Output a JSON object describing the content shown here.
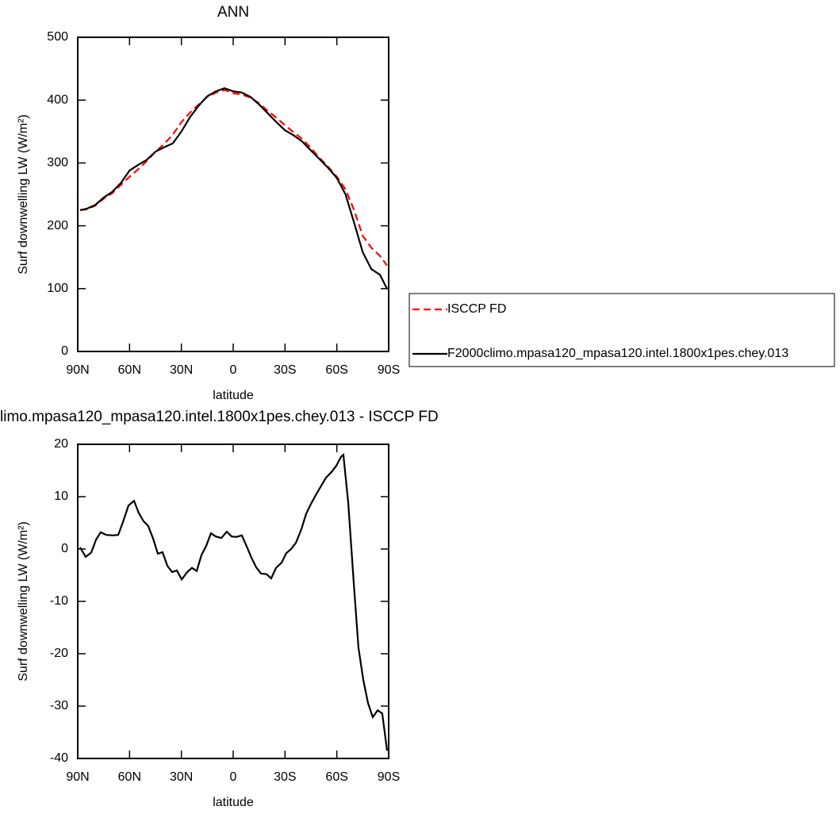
{
  "chart_data": [
    {
      "type": "line",
      "title": "ANN",
      "xlabel": "latitude",
      "ylabel": "Surf downwelling LW (W/m²)",
      "x": [
        88.6,
        85,
        80,
        75,
        70,
        65,
        60,
        55,
        50,
        45,
        40,
        35,
        30,
        25,
        20,
        15,
        10,
        5,
        0,
        -5,
        -10,
        -15,
        -20,
        -25,
        -30,
        -35,
        -40,
        -45,
        -50,
        -55,
        -60,
        -65,
        -70,
        -75,
        -80,
        -85,
        -89
      ],
      "series": [
        {
          "name": "ISCCP FD",
          "color": "#ff0000",
          "dashed": true,
          "values": [
            225,
            226,
            232,
            243,
            252,
            265,
            278,
            290,
            303,
            318,
            330,
            345,
            365,
            380,
            393,
            405,
            412,
            416,
            411,
            409,
            404,
            395,
            383,
            372,
            360,
            349,
            338,
            324,
            308,
            294,
            278,
            258,
            225,
            184,
            165,
            152,
            137
          ]
        },
        {
          "name": "F2000climo.mpasa120_mpasa120.intel.1800x1pes.chey.013",
          "color": "#000000",
          "dashed": false,
          "values": [
            225,
            227,
            233,
            245,
            254,
            268,
            288,
            297,
            305,
            318,
            325,
            331,
            350,
            373,
            391,
            406,
            414,
            419,
            414,
            412,
            405,
            393,
            379,
            365,
            352,
            344,
            334,
            320,
            306,
            292,
            276,
            250,
            205,
            158,
            131,
            122,
            100
          ]
        }
      ],
      "xlim": [
        90,
        -90
      ],
      "xticks": [
        {
          "value": 90,
          "label": "90N"
        },
        {
          "value": 60,
          "label": "60N"
        },
        {
          "value": 30,
          "label": "30N"
        },
        0,
        {
          "value": -30,
          "label": "30S"
        },
        {
          "value": -60,
          "label": "60S"
        },
        {
          "value": -90,
          "label": "90S"
        }
      ],
      "ylim": [
        0,
        500
      ],
      "yticks": [
        0,
        100,
        200,
        300,
        400,
        500
      ],
      "legend": "right"
    },
    {
      "type": "line",
      "title": "limo.mpasa120_mpasa120.intel.1800x1pes.chey.013 - ISCCP FD",
      "xlabel": "latitude",
      "ylabel": "Surf downwelling LW (W/m²)",
      "x": [
        88.6,
        85.4,
        82.2,
        79.4,
        76.7,
        73.5,
        69.8,
        66.6,
        63.8,
        60.6,
        57.4,
        54.7,
        51.9,
        49.2,
        46.4,
        43.6,
        40.9,
        38.1,
        35.4,
        32.6,
        29.8,
        26.6,
        23.9,
        21.1,
        18.4,
        15.6,
        12.9,
        10.1,
        6.9,
        3.7,
        0.9,
        -1.8,
        -5,
        -7.8,
        -10.6,
        -13.3,
        -16.1,
        -19.3,
        -22,
        -24.8,
        -28,
        -30.7,
        -33.5,
        -36.3,
        -39.5,
        -42.2,
        -45,
        -47.8,
        -51,
        -53.7,
        -56.9,
        -59.7,
        -62.4,
        -63.8,
        -66.6,
        -69.8,
        -72.5,
        -75.3,
        -78.1,
        -80.8,
        -83.6,
        -86.3,
        -89.1
      ],
      "series": [
        {
          "color": "#000000",
          "dashed": false,
          "values": [
            0.3,
            -1.5,
            -0.7,
            1.8,
            3.2,
            2.7,
            2.6,
            2.7,
            5.2,
            8.3,
            9.2,
            6.9,
            5.3,
            4.4,
            2.0,
            -0.9,
            -0.6,
            -3.2,
            -4.4,
            -4.1,
            -5.8,
            -4.4,
            -3.6,
            -4.2,
            -1.2,
            0.6,
            3.0,
            2.4,
            2.1,
            3.3,
            2.4,
            2.3,
            2.6,
            0.5,
            -1.7,
            -3.5,
            -4.7,
            -4.8,
            -5.6,
            -3.6,
            -2.6,
            -0.8,
            0.0,
            1.2,
            3.8,
            6.7,
            8.6,
            10.3,
            12.1,
            13.6,
            14.7,
            15.9,
            17.6,
            18.0,
            8.9,
            -6.5,
            -18.8,
            -25.0,
            -29.5,
            -32.1,
            -30.8,
            -31.4,
            -38.5
          ]
        }
      ],
      "xlim": [
        90,
        -90
      ],
      "xticks": [
        {
          "value": 90,
          "label": "90N"
        },
        {
          "value": 60,
          "label": "60N"
        },
        {
          "value": 30,
          "label": "30N"
        },
        0,
        {
          "value": -30,
          "label": "30S"
        },
        {
          "value": -60,
          "label": "60S"
        },
        {
          "value": -90,
          "label": "90S"
        }
      ],
      "ylim": [
        -40,
        20
      ],
      "yticks": [
        -40,
        -30,
        -20,
        -10,
        0,
        10,
        20
      ]
    }
  ]
}
